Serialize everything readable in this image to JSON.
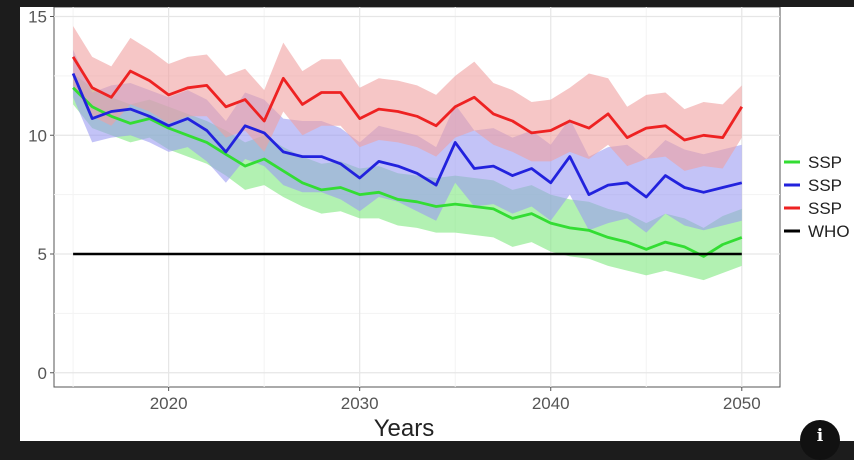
{
  "info_button": {
    "label": "i"
  },
  "chart_data": {
    "type": "line",
    "title": "",
    "xlabel": "Years",
    "ylabel": "",
    "xlim": [
      2014,
      2052
    ],
    "ylim": [
      -0.6,
      15.4
    ],
    "xticks": [
      2020,
      2030,
      2040,
      2050
    ],
    "yticks": [
      0,
      5,
      10,
      15
    ],
    "grid": true,
    "legend_position": "right (partially cropped)",
    "x": [
      2015,
      2016,
      2017,
      2018,
      2019,
      2020,
      2021,
      2022,
      2023,
      2024,
      2025,
      2026,
      2027,
      2028,
      2029,
      2030,
      2031,
      2032,
      2033,
      2034,
      2035,
      2036,
      2037,
      2038,
      2039,
      2040,
      2041,
      2042,
      2043,
      2044,
      2045,
      2046,
      2047,
      2048,
      2049,
      2050
    ],
    "series": [
      {
        "name": "SSP",
        "color": "#33dd33",
        "band_color": "#7ee87e",
        "values": [
          12.0,
          11.2,
          10.8,
          10.5,
          10.7,
          10.3,
          10.0,
          9.7,
          9.2,
          8.7,
          9.0,
          8.5,
          8.0,
          7.7,
          7.8,
          7.5,
          7.6,
          7.3,
          7.2,
          7.0,
          7.1,
          7.0,
          6.9,
          6.5,
          6.7,
          6.3,
          6.1,
          6.0,
          5.7,
          5.5,
          5.2,
          5.5,
          5.3,
          4.9,
          5.4,
          5.7
        ],
        "lower": [
          11.3,
          10.3,
          10.0,
          9.7,
          9.9,
          9.4,
          9.1,
          8.8,
          8.3,
          7.7,
          7.9,
          7.4,
          7.0,
          6.7,
          6.8,
          6.5,
          6.5,
          6.2,
          6.1,
          5.9,
          5.9,
          5.8,
          5.7,
          5.3,
          5.5,
          5.1,
          4.9,
          4.8,
          4.5,
          4.3,
          4.1,
          4.3,
          4.1,
          3.9,
          4.2,
          4.5
        ],
        "upper": [
          12.6,
          12.0,
          11.6,
          11.3,
          11.5,
          11.2,
          10.9,
          10.6,
          10.2,
          9.7,
          10.0,
          9.5,
          9.1,
          8.8,
          8.9,
          8.6,
          8.7,
          8.4,
          8.3,
          8.2,
          8.3,
          8.2,
          8.1,
          7.7,
          7.9,
          7.5,
          7.3,
          7.2,
          6.9,
          6.7,
          6.3,
          6.7,
          6.5,
          6.1,
          6.6,
          6.9
        ]
      },
      {
        "name": "SSP",
        "color": "#2222dd",
        "band_color": "#9b9bf2",
        "values": [
          12.6,
          10.7,
          11.0,
          11.1,
          10.8,
          10.4,
          10.7,
          10.2,
          9.3,
          10.4,
          10.1,
          9.3,
          9.1,
          9.1,
          8.8,
          8.2,
          8.9,
          8.7,
          8.4,
          7.9,
          9.7,
          8.6,
          8.7,
          8.3,
          8.6,
          8.0,
          9.1,
          7.5,
          7.9,
          8.0,
          7.4,
          8.3,
          7.8,
          7.6,
          7.8,
          8.0
        ],
        "lower": [
          11.6,
          9.7,
          9.9,
          10.0,
          9.7,
          9.3,
          9.5,
          8.9,
          8.0,
          9.0,
          8.7,
          7.9,
          7.6,
          7.6,
          7.3,
          6.8,
          7.4,
          7.2,
          6.8,
          6.4,
          8.0,
          7.0,
          7.1,
          6.7,
          7.0,
          6.4,
          7.5,
          6.0,
          6.3,
          6.5,
          5.9,
          6.7,
          6.2,
          6.0,
          6.2,
          6.4
        ],
        "upper": [
          13.6,
          11.8,
          12.1,
          12.2,
          11.9,
          11.6,
          11.9,
          11.5,
          10.6,
          11.8,
          11.5,
          10.7,
          10.6,
          10.6,
          10.3,
          9.7,
          10.4,
          10.2,
          10.0,
          9.5,
          11.3,
          10.2,
          10.3,
          9.9,
          10.2,
          9.6,
          10.7,
          9.1,
          9.5,
          9.6,
          9.0,
          9.8,
          9.4,
          9.2,
          9.4,
          9.6
        ]
      },
      {
        "name": "SSP",
        "color": "#ee2222",
        "band_color": "#f0a0a0",
        "values": [
          13.3,
          12.0,
          11.6,
          12.7,
          12.3,
          11.7,
          12.0,
          12.1,
          11.2,
          11.5,
          10.6,
          12.4,
          11.3,
          11.8,
          11.8,
          10.7,
          11.1,
          11.0,
          10.8,
          10.4,
          11.2,
          11.6,
          10.9,
          10.6,
          10.1,
          10.2,
          10.6,
          10.3,
          10.9,
          9.9,
          10.3,
          10.4,
          9.8,
          10.0,
          9.9,
          11.2
        ],
        "lower": [
          12.1,
          10.8,
          10.4,
          11.3,
          11.0,
          10.5,
          10.8,
          10.8,
          9.9,
          10.2,
          9.3,
          11.0,
          10.0,
          10.4,
          10.4,
          9.5,
          9.8,
          9.7,
          9.5,
          9.1,
          9.9,
          10.2,
          9.6,
          9.3,
          8.9,
          8.9,
          9.3,
          9.0,
          9.6,
          8.7,
          9.0,
          9.1,
          8.5,
          8.7,
          8.6,
          9.9
        ],
        "upper": [
          14.6,
          13.3,
          12.9,
          14.1,
          13.6,
          13.0,
          13.3,
          13.4,
          12.5,
          12.8,
          11.9,
          13.9,
          12.7,
          13.2,
          13.2,
          12.0,
          12.4,
          12.3,
          12.1,
          11.7,
          12.5,
          13.1,
          12.2,
          11.9,
          11.4,
          11.5,
          12.0,
          12.6,
          12.4,
          11.2,
          11.7,
          11.8,
          11.1,
          11.4,
          11.3,
          12.1
        ]
      },
      {
        "name": "WHO",
        "color": "#000000",
        "values": [
          5,
          5,
          5,
          5,
          5,
          5,
          5,
          5,
          5,
          5,
          5,
          5,
          5,
          5,
          5,
          5,
          5,
          5,
          5,
          5,
          5,
          5,
          5,
          5,
          5,
          5,
          5,
          5,
          5,
          5,
          5,
          5,
          5,
          5,
          5,
          5
        ]
      }
    ]
  }
}
